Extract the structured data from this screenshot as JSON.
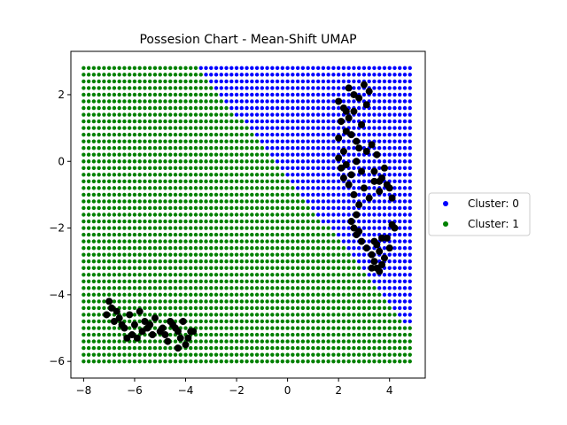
{
  "chart_data": {
    "type": "scatter",
    "title": "Possesion Chart - Mean-Shift UMAP",
    "xlabel": "",
    "ylabel": "",
    "xlim": [
      -8.5,
      5.4
    ],
    "ylim": [
      -6.5,
      3.3
    ],
    "x_ticks": [
      -8,
      -6,
      -4,
      -2,
      0,
      2,
      4
    ],
    "y_ticks": [
      -6,
      -4,
      -2,
      0,
      2
    ],
    "grid": false,
    "legend_position": "right",
    "mesh": {
      "x_range": [
        -8.0,
        4.8
      ],
      "y_range": [
        -6.0,
        2.8
      ],
      "step": 0.2,
      "boundary_line": {
        "from": [
          -3.5,
          2.8
        ],
        "to": [
          4.8,
          -5.0
        ]
      },
      "cluster_above_boundary": "Cluster: 0"
    },
    "series": [
      {
        "name": "Cluster: 0",
        "color": "#0000ff"
      },
      {
        "name": "Cluster: 1",
        "color": "#008000"
      }
    ],
    "observations": {
      "color": "#000000",
      "points": [
        [
          -7.0,
          -4.2
        ],
        [
          -6.9,
          -4.4
        ],
        [
          -7.1,
          -4.6
        ],
        [
          -6.8,
          -4.8
        ],
        [
          -6.6,
          -4.7
        ],
        [
          -6.5,
          -4.9
        ],
        [
          -6.2,
          -4.6
        ],
        [
          -6.0,
          -4.9
        ],
        [
          -6.1,
          -5.2
        ],
        [
          -5.9,
          -5.3
        ],
        [
          -5.8,
          -4.5
        ],
        [
          -5.6,
          -4.8
        ],
        [
          -5.5,
          -5.0
        ],
        [
          -5.3,
          -5.2
        ],
        [
          -5.2,
          -4.7
        ],
        [
          -5.7,
          -5.1
        ],
        [
          -6.3,
          -5.3
        ],
        [
          -5.4,
          -4.9
        ],
        [
          -6.4,
          -5.0
        ],
        [
          -6.7,
          -4.5
        ],
        [
          -4.6,
          -4.8
        ],
        [
          -4.4,
          -5.0
        ],
        [
          -4.2,
          -5.3
        ],
        [
          -4.0,
          -5.5
        ],
        [
          -3.8,
          -5.1
        ],
        [
          -4.8,
          -5.2
        ],
        [
          -4.5,
          -4.9
        ],
        [
          -4.1,
          -4.8
        ],
        [
          -4.3,
          -5.6
        ],
        [
          -3.9,
          -5.3
        ],
        [
          -4.7,
          -5.4
        ],
        [
          -5.0,
          -5.1
        ],
        [
          -3.7,
          -5.1
        ],
        [
          -4.9,
          -5.0
        ],
        [
          -4.3,
          -5.1
        ],
        [
          2.0,
          1.8
        ],
        [
          2.2,
          1.6
        ],
        [
          2.4,
          1.3
        ],
        [
          2.6,
          2.0
        ],
        [
          2.8,
          1.9
        ],
        [
          3.0,
          2.3
        ],
        [
          3.2,
          2.1
        ],
        [
          2.5,
          0.8
        ],
        [
          2.7,
          0.6
        ],
        [
          2.9,
          1.1
        ],
        [
          2.1,
          1.2
        ],
        [
          2.3,
          0.9
        ],
        [
          2.0,
          0.7
        ],
        [
          2.6,
          1.5
        ],
        [
          2.4,
          2.2
        ],
        [
          2.2,
          0.3
        ],
        [
          2.0,
          0.1
        ],
        [
          2.1,
          -0.2
        ],
        [
          2.3,
          -0.1
        ],
        [
          2.5,
          -0.4
        ],
        [
          2.7,
          0.0
        ],
        [
          2.9,
          -0.3
        ],
        [
          3.1,
          0.3
        ],
        [
          3.3,
          0.5
        ],
        [
          3.5,
          0.2
        ],
        [
          3.7,
          -0.5
        ],
        [
          3.9,
          -0.7
        ],
        [
          3.6,
          -0.9
        ],
        [
          3.4,
          -0.6
        ],
        [
          3.8,
          -0.2
        ],
        [
          2.4,
          -0.7
        ],
        [
          2.6,
          -1.0
        ],
        [
          2.8,
          -1.3
        ],
        [
          2.7,
          -1.6
        ],
        [
          2.5,
          -1.8
        ],
        [
          3.0,
          -0.8
        ],
        [
          3.2,
          -1.1
        ],
        [
          4.0,
          -0.8
        ],
        [
          4.1,
          -1.1
        ],
        [
          3.6,
          -0.6
        ],
        [
          2.6,
          -2.0
        ],
        [
          2.8,
          -2.1
        ],
        [
          2.7,
          -2.2
        ],
        [
          2.9,
          -2.4
        ],
        [
          3.1,
          -2.6
        ],
        [
          3.3,
          -2.8
        ],
        [
          3.5,
          -2.5
        ],
        [
          3.6,
          -2.7
        ],
        [
          3.4,
          -3.0
        ],
        [
          3.5,
          -3.2
        ],
        [
          3.7,
          -3.1
        ],
        [
          3.8,
          -2.9
        ],
        [
          4.0,
          -2.6
        ],
        [
          3.6,
          -3.3
        ],
        [
          3.3,
          -3.2
        ],
        [
          4.1,
          -1.9
        ],
        [
          4.2,
          -2.0
        ],
        [
          3.9,
          -2.3
        ],
        [
          3.7,
          -2.3
        ],
        [
          3.4,
          -2.4
        ],
        [
          2.3,
          1.5
        ],
        [
          3.1,
          1.7
        ],
        [
          2.8,
          0.4
        ],
        [
          3.4,
          -0.3
        ],
        [
          2.2,
          -0.5
        ]
      ]
    }
  },
  "legend": {
    "items": [
      {
        "label": "Cluster: 0",
        "color": "#0000ff"
      },
      {
        "label": "Cluster: 1",
        "color": "#008000"
      }
    ]
  },
  "colors": {
    "axis": "#000000",
    "background": "#ffffff"
  }
}
